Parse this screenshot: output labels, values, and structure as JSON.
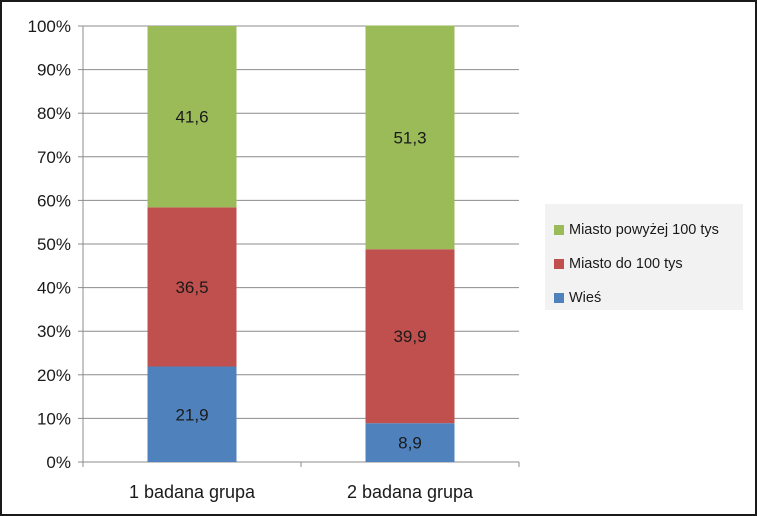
{
  "chart_data": {
    "type": "bar",
    "stacked": true,
    "percent_stacked": true,
    "categories": [
      "1 badana grupa",
      "2 badana grupa"
    ],
    "series": [
      {
        "name": "Wieś",
        "values": [
          21.9,
          8.9
        ],
        "color": "#4f81bd"
      },
      {
        "name": "Miasto do 100 tys",
        "values": [
          36.5,
          39.9
        ],
        "color": "#c0504d"
      },
      {
        "name": "Miasto powyżej 100 tys",
        "values": [
          41.6,
          51.3
        ],
        "color": "#9bbb59"
      }
    ],
    "y_ticks": [
      "0%",
      "10%",
      "20%",
      "30%",
      "40%",
      "50%",
      "60%",
      "70%",
      "80%",
      "90%",
      "100%"
    ],
    "ylim": [
      0,
      100
    ],
    "grid": true,
    "legend_position": "right",
    "legend_order": [
      "Miasto powyżej 100 tys",
      "Miasto do 100 tys",
      "Wieś"
    ]
  }
}
